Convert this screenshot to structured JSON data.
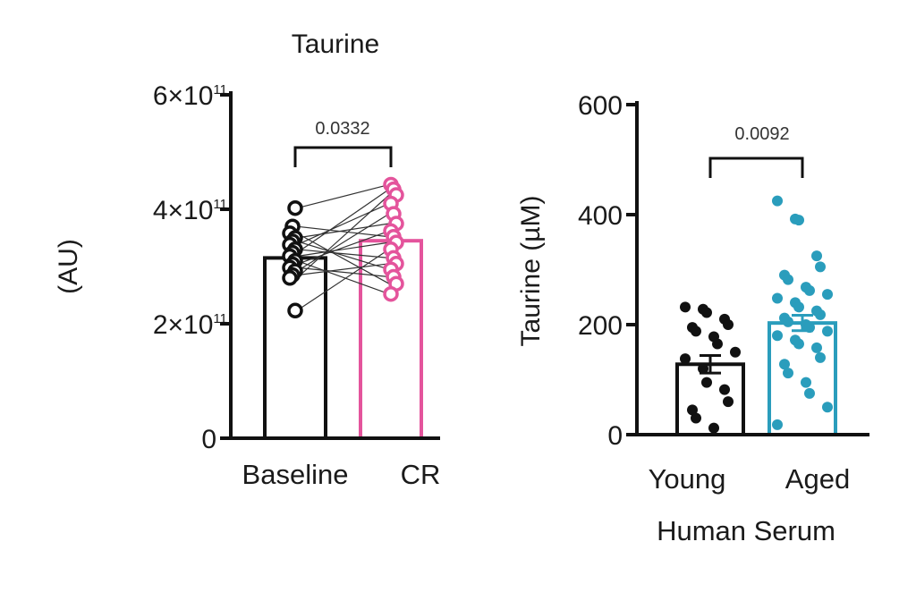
{
  "chart_data": [
    {
      "type": "bar",
      "title": "Taurine",
      "ylabel": "(AU)",
      "xlabel": "",
      "categories": [
        "Baseline",
        "CR"
      ],
      "ylim": [
        0,
        600000000000.0
      ],
      "yticks": [
        {
          "value": 0,
          "mantissa": "0",
          "exp": ""
        },
        {
          "value": 200000000000.0,
          "mantissa": "2×10",
          "exp": "11"
        },
        {
          "value": 400000000000.0,
          "mantissa": "4×10",
          "exp": "11"
        },
        {
          "value": 600000000000.0,
          "mantissa": "6×10",
          "exp": "11"
        }
      ],
      "series": [
        {
          "category": "Baseline",
          "mean": 315000000000.0,
          "color": "#111111",
          "points": [
            402000000000.0,
            370000000000.0,
            358000000000.0,
            350000000000.0,
            344000000000.0,
            338000000000.0,
            330000000000.0,
            324000000000.0,
            318000000000.0,
            310000000000.0,
            304000000000.0,
            298000000000.0,
            292000000000.0,
            285000000000.0,
            280000000000.0,
            223000000000.0
          ]
        },
        {
          "category": "CR",
          "mean": 345000000000.0,
          "color": "#e4549c",
          "points": [
            443000000000.0,
            435000000000.0,
            425000000000.0,
            410000000000.0,
            392000000000.0,
            375000000000.0,
            362000000000.0,
            352000000000.0,
            342000000000.0,
            330000000000.0,
            315000000000.0,
            305000000000.0,
            295000000000.0,
            282000000000.0,
            270000000000.0,
            252000000000.0
          ]
        }
      ],
      "paired": true,
      "comparison": {
        "p_value": "0.0332"
      },
      "grid": false,
      "legend": "none"
    },
    {
      "type": "bar",
      "title": "",
      "ylabel": "Taurine (µM)",
      "xlabel": "Human Serum",
      "categories": [
        "Young",
        "Aged"
      ],
      "ylim": [
        0,
        600
      ],
      "yticks": [
        {
          "value": 0,
          "mantissa": "0",
          "exp": ""
        },
        {
          "value": 200,
          "mantissa": "200",
          "exp": ""
        },
        {
          "value": 400,
          "mantissa": "400",
          "exp": ""
        },
        {
          "value": 600,
          "mantissa": "600",
          "exp": ""
        }
      ],
      "series": [
        {
          "category": "Young",
          "mean": 128,
          "sem": 16,
          "color": "#111111",
          "points": [
            232,
            228,
            222,
            210,
            200,
            195,
            188,
            178,
            165,
            150,
            138,
            120,
            95,
            82,
            60,
            45,
            30,
            12
          ]
        },
        {
          "category": "Aged",
          "mean": 203,
          "sem": 14,
          "color": "#2a9dbc",
          "points": [
            425,
            392,
            390,
            325,
            305,
            290,
            282,
            268,
            262,
            255,
            248,
            240,
            232,
            225,
            218,
            212,
            205,
            200,
            195,
            188,
            180,
            172,
            165,
            158,
            140,
            128,
            112,
            95,
            75,
            50,
            18
          ]
        }
      ],
      "paired": false,
      "comparison": {
        "p_value": "0.0092"
      },
      "grid": false,
      "legend": "none"
    }
  ]
}
